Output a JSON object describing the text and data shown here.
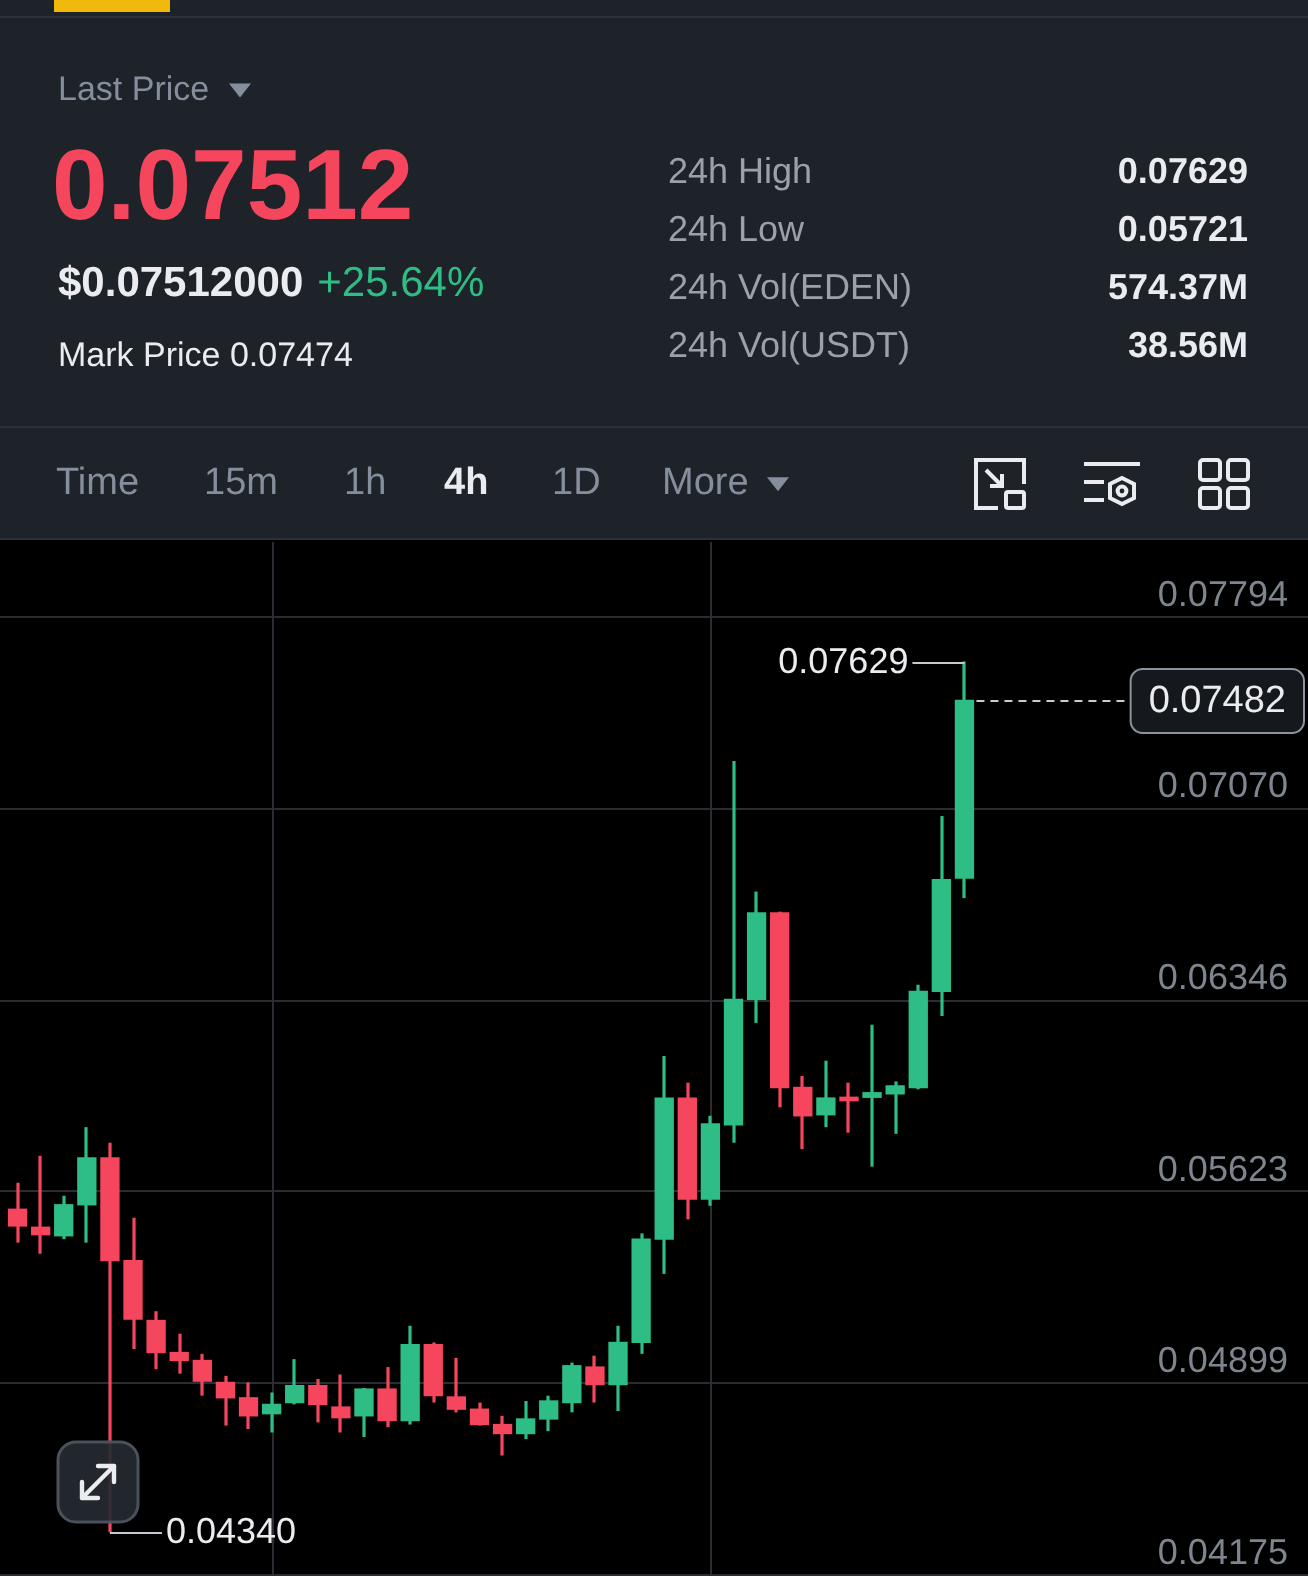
{
  "chart_data": {
    "type": "candlestick",
    "annotations": [
      "Last Price",
      "0.07512",
      "$0.07512000",
      "+25.64%",
      "Mark Price 0.07474",
      "24h High",
      "0.07629",
      "24h Low",
      "0.05721",
      "24h Vol(EDEN)",
      "574.37M",
      "24h Vol(USDT)",
      "38.56M",
      "Time",
      "15m",
      "1h",
      "4h",
      "1D",
      "More",
      "0.07629",
      "0.04340"
    ],
    "categories": [
      null,
      null,
      null,
      null,
      null,
      null,
      null,
      null,
      null,
      null,
      null,
      null,
      null,
      null,
      null,
      null,
      null,
      null,
      null,
      null,
      null,
      null,
      null,
      null,
      null,
      null,
      null,
      null,
      null,
      null,
      null,
      null,
      null,
      null,
      null,
      null,
      null,
      null,
      null,
      null,
      null,
      null
    ],
    "ohlc": [
      [
        0.0556,
        0.0566,
        0.05434,
        0.05497
      ],
      [
        0.05492,
        0.05762,
        0.05392,
        0.05464
      ],
      [
        0.0546,
        0.05611,
        0.05447,
        0.05577
      ],
      [
        0.05577,
        0.0587,
        0.05434,
        0.05754
      ],
      [
        0.05754,
        0.05811,
        0.0434,
        0.05366
      ],
      [
        0.05366,
        0.05528,
        0.05032,
        0.05145
      ],
      [
        0.0514,
        0.05175,
        0.04956,
        0.05019
      ],
      [
        0.05019,
        0.0509,
        0.04939,
        0.04989
      ],
      [
        0.04989,
        0.05014,
        0.04856,
        0.04911
      ],
      [
        0.04906,
        0.04931,
        0.04743,
        0.04848
      ],
      [
        0.04848,
        0.04906,
        0.0473,
        0.0478
      ],
      [
        0.04788,
        0.04868,
        0.04717,
        0.04823
      ],
      [
        0.0483,
        0.04994,
        0.04823,
        0.04894
      ],
      [
        0.04894,
        0.04919,
        0.04755,
        0.04823
      ],
      [
        0.04813,
        0.04936,
        0.04717,
        0.04773
      ],
      [
        0.0478,
        0.04885,
        0.047,
        0.04881
      ],
      [
        0.04881,
        0.04964,
        0.04737,
        0.04762
      ],
      [
        0.04762,
        0.0512,
        0.04747,
        0.05049
      ],
      [
        0.05049,
        0.05057,
        0.0483,
        0.04856
      ],
      [
        0.04851,
        0.04999,
        0.04793,
        0.04805
      ],
      [
        0.04805,
        0.0483,
        0.04743,
        0.04747
      ],
      [
        0.04747,
        0.0478,
        0.0463,
        0.04713
      ],
      [
        0.04713,
        0.04836,
        0.04692,
        0.04768
      ],
      [
        0.04768,
        0.04856,
        0.04722,
        0.04836
      ],
      [
        0.0483,
        0.04981,
        0.04793,
        0.04969
      ],
      [
        0.04964,
        0.05007,
        0.0483,
        0.04898
      ],
      [
        0.04898,
        0.0512,
        0.04798,
        0.05057
      ],
      [
        0.05057,
        0.05469,
        0.05014,
        0.05447
      ],
      [
        0.05447,
        0.06139,
        0.05316,
        0.0598
      ],
      [
        0.0598,
        0.06038,
        0.05522,
        0.05598
      ],
      [
        0.05598,
        0.05913,
        0.05573,
        0.05882
      ],
      [
        0.05879,
        0.07253,
        0.05811,
        0.06353
      ],
      [
        0.06353,
        0.0676,
        0.06264,
        0.06679
      ],
      [
        0.06679,
        0.06684,
        0.05945,
        0.0602
      ],
      [
        0.0602,
        0.06063,
        0.05787,
        0.05913
      ],
      [
        0.05917,
        0.06121,
        0.0587,
        0.0598
      ],
      [
        0.05983,
        0.06038,
        0.05849,
        0.0597
      ],
      [
        0.05983,
        0.06257,
        0.05721,
        0.06
      ],
      [
        0.05996,
        0.06043,
        0.05845,
        0.06026
      ],
      [
        0.0602,
        0.06408,
        0.06013,
        0.06383
      ],
      [
        0.06383,
        0.07045,
        0.0629,
        0.06805
      ],
      [
        0.06811,
        0.07629,
        0.06735,
        0.07482
      ]
    ],
    "colors": [
      "#f6465d",
      "#f6465d",
      "#2ebd85",
      "#2ebd85",
      "#f6465d",
      "#f6465d",
      "#f6465d",
      "#f6465d",
      "#f6465d",
      "#f6465d",
      "#f6465d",
      "#2ebd85",
      "#2ebd85",
      "#f6465d",
      "#f6465d",
      "#2ebd85",
      "#f6465d",
      "#2ebd85",
      "#f6465d",
      "#f6465d",
      "#f6465d",
      "#f6465d",
      "#2ebd85",
      "#2ebd85",
      "#2ebd85",
      "#f6465d",
      "#2ebd85",
      "#2ebd85",
      "#2ebd85",
      "#f6465d",
      "#2ebd85",
      "#2ebd85",
      "#2ebd85",
      "#f6465d",
      "#f6465d",
      "#2ebd85",
      "#f6465d",
      "#2ebd85",
      "#2ebd85",
      "#2ebd85",
      "#2ebd85",
      "#2ebd85"
    ],
    "ylim": [
      0.04175,
      0.0808
    ],
    "yticks": [
      0.04175,
      0.04899,
      0.05623,
      0.06346,
      {
        "value": 0.0707,
        "label": "0.07070"
      },
      0.07794
    ],
    "ref_lines": [
      {
        "axis": "y",
        "value": 0.07482,
        "label": "0.07482",
        "color": "#c9cdd3",
        "line_style": "dashed"
      }
    ],
    "grid": "y",
    "tick_labels": "y"
  }
}
